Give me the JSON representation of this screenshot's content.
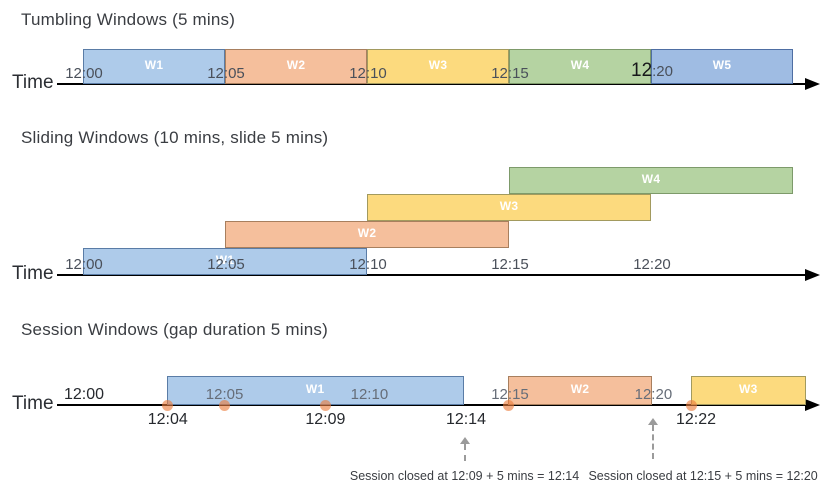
{
  "palette": {
    "blue": {
      "fill": "#aecbea",
      "border": "#5a7ca6"
    },
    "orange": {
      "fill": "#f5bf9c",
      "border": "#a87f5e"
    },
    "yellow": {
      "fill": "#fcda7e",
      "border": "#a29a5e"
    },
    "green": {
      "fill": "#b5d3a2",
      "border": "#7d9a6a"
    },
    "blue2": {
      "fill": "#9fbce3",
      "border": "#4e6ea3"
    }
  },
  "axis_color": "#000000",
  "event_dot_color": "rgba(236,125,60,0.62)",
  "sections": [
    {
      "id": "tumbling",
      "title": "Tumbling Windows (5 mins)",
      "time_label": "Time",
      "windows": [
        {
          "label": "W1",
          "start": 0,
          "end": 5,
          "color": "blue",
          "row": 0
        },
        {
          "label": "W2",
          "start": 5,
          "end": 10,
          "color": "orange",
          "row": 0
        },
        {
          "label": "W3",
          "start": 10,
          "end": 15,
          "color": "yellow",
          "row": 0
        },
        {
          "label": "W4",
          "start": 15,
          "end": 20,
          "color": "green",
          "row": 0
        },
        {
          "label": "W5",
          "start": 20,
          "end": 25,
          "color": "blue2",
          "row": 0
        }
      ],
      "ticks": [
        {
          "label": "12:00",
          "t": 0
        },
        {
          "label": "12:05",
          "t": 5
        },
        {
          "label": "12:10",
          "t": 10
        },
        {
          "label": "12:15",
          "t": 15
        },
        {
          "prefix": "12",
          "suffix": ":20",
          "t": 20,
          "emphasis": true
        }
      ]
    },
    {
      "id": "sliding",
      "title": "Sliding Windows (10 mins, slide 5 mins)",
      "time_label": "Time",
      "windows": [
        {
          "label": "W1",
          "start": 0,
          "end": 10,
          "color": "blue",
          "row": 0
        },
        {
          "label": "W2",
          "start": 5,
          "end": 15,
          "color": "orange",
          "row": 1
        },
        {
          "label": "W3",
          "start": 10,
          "end": 20,
          "color": "yellow",
          "row": 2
        },
        {
          "label": "W4",
          "start": 15,
          "end": 25,
          "color": "green",
          "row": 3
        }
      ],
      "ticks": [
        {
          "label": "12:00",
          "t": 0
        },
        {
          "label": "12:05",
          "t": 5
        },
        {
          "label": "12:10",
          "t": 10
        },
        {
          "label": "12:15",
          "t": 15
        },
        {
          "label": "12:20",
          "t": 20
        }
      ]
    },
    {
      "id": "session",
      "title": "Session Windows (gap duration 5 mins)",
      "time_label": "Time",
      "windows": [
        {
          "label": "W1",
          "start": 2.95,
          "end": 13.4,
          "color": "blue",
          "row": 0
        },
        {
          "label": "W2",
          "start": 14.95,
          "end": 20.05,
          "color": "orange",
          "row": 0
        },
        {
          "label": "W3",
          "start": 21.4,
          "end": 25.45,
          "color": "yellow",
          "row": 0
        }
      ],
      "ticks": [
        {
          "label": "12:00",
          "t": 0,
          "dark": true
        },
        {
          "label": "12:05",
          "t": 4.95,
          "muted": true
        },
        {
          "label": "12:10",
          "t": 10.05,
          "muted": true
        },
        {
          "label": "12:15",
          "t": 15,
          "muted": true
        },
        {
          "label": "12:20",
          "t": 20.05,
          "muted": true
        }
      ],
      "events": [
        {
          "t": 2.95
        },
        {
          "t": 4.95
        },
        {
          "t": 8.5
        },
        {
          "t": 14.95
        },
        {
          "t": 21.4
        }
      ],
      "event_labels": [
        {
          "label": "12:04",
          "t": 2.95
        },
        {
          "label": "12:09",
          "t": 8.5
        },
        {
          "label": "12:14",
          "t": 13.45
        },
        {
          "label": "12:22",
          "t": 21.55
        }
      ],
      "arrows": [
        {
          "t": 13.4
        },
        {
          "t": 20.05
        }
      ],
      "annotations": [
        {
          "text": "Session closed at 12:09 + 5 mins = 12:14",
          "t": 13.4
        },
        {
          "text": "Session closed at 12:15 + 5 mins = 12:20",
          "t": 21.8
        }
      ]
    }
  ]
}
